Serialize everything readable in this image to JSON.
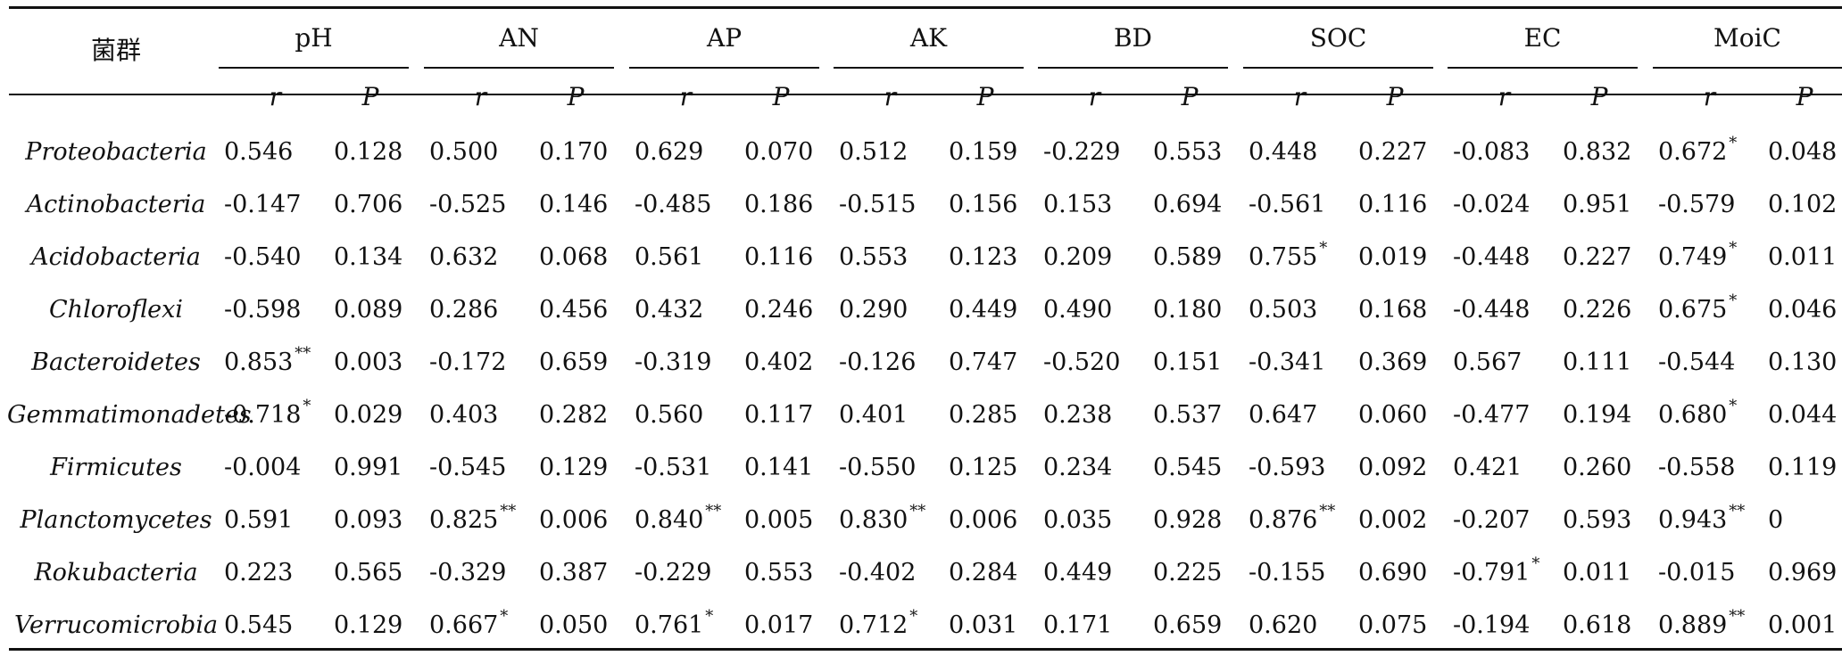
{
  "header": {
    "group_label": "菌群",
    "variables": [
      "pH",
      "AN",
      "AP",
      "AK",
      "BD",
      "SOC",
      "EC",
      "MoiC"
    ],
    "r_label": "r",
    "p_label": "P"
  },
  "rows": [
    {
      "taxon": "Proteobacteria",
      "cells": [
        [
          "0.546",
          ""
        ],
        [
          "0.128",
          ""
        ],
        [
          "0.500",
          ""
        ],
        [
          "0.170",
          ""
        ],
        [
          "0.629",
          ""
        ],
        [
          "0.070",
          ""
        ],
        [
          "0.512",
          ""
        ],
        [
          "0.159",
          ""
        ],
        [
          "-0.229",
          ""
        ],
        [
          "0.553",
          ""
        ],
        [
          "0.448",
          ""
        ],
        [
          "0.227",
          ""
        ],
        [
          "-0.083",
          ""
        ],
        [
          "0.832",
          ""
        ],
        [
          "0.672",
          "*"
        ],
        [
          "0.048",
          ""
        ]
      ]
    },
    {
      "taxon": "Actinobacteria",
      "cells": [
        [
          "-0.147",
          ""
        ],
        [
          "0.706",
          ""
        ],
        [
          "-0.525",
          ""
        ],
        [
          "0.146",
          ""
        ],
        [
          "-0.485",
          ""
        ],
        [
          "0.186",
          ""
        ],
        [
          "-0.515",
          ""
        ],
        [
          "0.156",
          ""
        ],
        [
          "0.153",
          ""
        ],
        [
          "0.694",
          ""
        ],
        [
          "-0.561",
          ""
        ],
        [
          "0.116",
          ""
        ],
        [
          "-0.024",
          ""
        ],
        [
          "0.951",
          ""
        ],
        [
          "-0.579",
          ""
        ],
        [
          "0.102",
          ""
        ]
      ]
    },
    {
      "taxon": "Acidobacteria",
      "cells": [
        [
          "-0.540",
          ""
        ],
        [
          "0.134",
          ""
        ],
        [
          "0.632",
          ""
        ],
        [
          "0.068",
          ""
        ],
        [
          "0.561",
          ""
        ],
        [
          "0.116",
          ""
        ],
        [
          "0.553",
          ""
        ],
        [
          "0.123",
          ""
        ],
        [
          "0.209",
          ""
        ],
        [
          "0.589",
          ""
        ],
        [
          "0.755",
          "*"
        ],
        [
          "0.019",
          ""
        ],
        [
          "-0.448",
          ""
        ],
        [
          "0.227",
          ""
        ],
        [
          "0.749",
          "*"
        ],
        [
          "0.011",
          ""
        ]
      ]
    },
    {
      "taxon": "Chloroflexi",
      "cells": [
        [
          "-0.598",
          ""
        ],
        [
          "0.089",
          ""
        ],
        [
          "0.286",
          ""
        ],
        [
          "0.456",
          ""
        ],
        [
          "0.432",
          ""
        ],
        [
          "0.246",
          ""
        ],
        [
          "0.290",
          ""
        ],
        [
          "0.449",
          ""
        ],
        [
          "0.490",
          ""
        ],
        [
          "0.180",
          ""
        ],
        [
          "0.503",
          ""
        ],
        [
          "0.168",
          ""
        ],
        [
          "-0.448",
          ""
        ],
        [
          "0.226",
          ""
        ],
        [
          "0.675",
          "*"
        ],
        [
          "0.046",
          ""
        ]
      ]
    },
    {
      "taxon": "Bacteroidetes",
      "cells": [
        [
          "0.853",
          "**"
        ],
        [
          "0.003",
          ""
        ],
        [
          "-0.172",
          ""
        ],
        [
          "0.659",
          ""
        ],
        [
          "-0.319",
          ""
        ],
        [
          "0.402",
          ""
        ],
        [
          "-0.126",
          ""
        ],
        [
          "0.747",
          ""
        ],
        [
          "-0.520",
          ""
        ],
        [
          "0.151",
          ""
        ],
        [
          "-0.341",
          ""
        ],
        [
          "0.369",
          ""
        ],
        [
          "0.567",
          ""
        ],
        [
          "0.111",
          ""
        ],
        [
          "-0.544",
          ""
        ],
        [
          "0.130",
          ""
        ]
      ]
    },
    {
      "taxon": "Gemmatimonadetes",
      "cells": [
        [
          "-0.718",
          "*"
        ],
        [
          "0.029",
          ""
        ],
        [
          "0.403",
          ""
        ],
        [
          "0.282",
          ""
        ],
        [
          "0.560",
          ""
        ],
        [
          "0.117",
          ""
        ],
        [
          "0.401",
          ""
        ],
        [
          "0.285",
          ""
        ],
        [
          "0.238",
          ""
        ],
        [
          "0.537",
          ""
        ],
        [
          "0.647",
          ""
        ],
        [
          "0.060",
          ""
        ],
        [
          "-0.477",
          ""
        ],
        [
          "0.194",
          ""
        ],
        [
          "0.680",
          "*"
        ],
        [
          "0.044",
          ""
        ]
      ]
    },
    {
      "taxon": "Firmicutes",
      "cells": [
        [
          "-0.004",
          ""
        ],
        [
          "0.991",
          ""
        ],
        [
          "-0.545",
          ""
        ],
        [
          "0.129",
          ""
        ],
        [
          "-0.531",
          ""
        ],
        [
          "0.141",
          ""
        ],
        [
          "-0.550",
          ""
        ],
        [
          "0.125",
          ""
        ],
        [
          "0.234",
          ""
        ],
        [
          "0.545",
          ""
        ],
        [
          "-0.593",
          ""
        ],
        [
          "0.092",
          ""
        ],
        [
          "0.421",
          ""
        ],
        [
          "0.260",
          ""
        ],
        [
          "-0.558",
          ""
        ],
        [
          "0.119",
          ""
        ]
      ]
    },
    {
      "taxon": "Planctomycetes",
      "cells": [
        [
          "0.591",
          ""
        ],
        [
          "0.093",
          ""
        ],
        [
          "0.825",
          "**"
        ],
        [
          "0.006",
          ""
        ],
        [
          "0.840",
          "**"
        ],
        [
          "0.005",
          ""
        ],
        [
          "0.830",
          "**"
        ],
        [
          "0.006",
          ""
        ],
        [
          "0.035",
          ""
        ],
        [
          "0.928",
          ""
        ],
        [
          "0.876",
          "**"
        ],
        [
          "0.002",
          ""
        ],
        [
          "-0.207",
          ""
        ],
        [
          "0.593",
          ""
        ],
        [
          "0.943",
          "**"
        ],
        [
          "0",
          ""
        ]
      ]
    },
    {
      "taxon": "Rokubacteria",
      "cells": [
        [
          "0.223",
          ""
        ],
        [
          "0.565",
          ""
        ],
        [
          "-0.329",
          ""
        ],
        [
          "0.387",
          ""
        ],
        [
          "-0.229",
          ""
        ],
        [
          "0.553",
          ""
        ],
        [
          "-0.402",
          ""
        ],
        [
          "0.284",
          ""
        ],
        [
          "0.449",
          ""
        ],
        [
          "0.225",
          ""
        ],
        [
          "-0.155",
          ""
        ],
        [
          "0.690",
          ""
        ],
        [
          "-0.791",
          "*"
        ],
        [
          "0.011",
          ""
        ],
        [
          "-0.015",
          ""
        ],
        [
          "0.969",
          ""
        ]
      ]
    },
    {
      "taxon": "Verrucomicrobia",
      "cells": [
        [
          "0.545",
          ""
        ],
        [
          "0.129",
          ""
        ],
        [
          "0.667",
          "*"
        ],
        [
          "0.050",
          ""
        ],
        [
          "0.761",
          "*"
        ],
        [
          "0.017",
          ""
        ],
        [
          "0.712",
          "*"
        ],
        [
          "0.031",
          ""
        ],
        [
          "0.171",
          ""
        ],
        [
          "0.659",
          ""
        ],
        [
          "0.620",
          ""
        ],
        [
          "0.075",
          ""
        ],
        [
          "-0.194",
          ""
        ],
        [
          "0.618",
          ""
        ],
        [
          "0.889",
          "**"
        ],
        [
          "0.001",
          ""
        ]
      ]
    }
  ]
}
